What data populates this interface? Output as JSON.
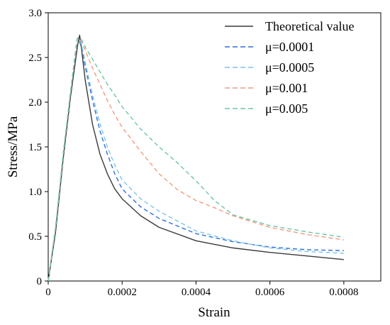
{
  "chart_data": {
    "type": "line",
    "title": "",
    "xlabel": "Strain",
    "ylabel": "Stress/MPa",
    "xlim": [
      0,
      0.0009
    ],
    "ylim": [
      0,
      3.0
    ],
    "x_ticks": [
      0,
      0.0002,
      0.0004,
      0.0006,
      0.0008
    ],
    "x_tick_labels": [
      "0",
      "0.0002",
      "0.0004",
      "0.0006",
      "0.0008"
    ],
    "y_ticks": [
      0,
      0.5,
      1.0,
      1.5,
      2.0,
      2.5,
      3.0
    ],
    "y_tick_labels": [
      "0",
      "0.5",
      "1.0",
      "1.5",
      "2.0",
      "2.5",
      "3.0"
    ],
    "grid": false,
    "legend_position": "top-right",
    "series": [
      {
        "name": "Theoretical value",
        "color": "#3a3a3a",
        "dash": "solid",
        "points": [
          [
            0,
            0
          ],
          [
            2e-05,
            0.55
          ],
          [
            4e-05,
            1.35
          ],
          [
            6e-05,
            2.05
          ],
          [
            8e-05,
            2.65
          ],
          [
            8.5e-05,
            2.75
          ],
          [
            9e-05,
            2.6
          ],
          [
            0.0001,
            2.25
          ],
          [
            0.00012,
            1.75
          ],
          [
            0.00014,
            1.42
          ],
          [
            0.00016,
            1.2
          ],
          [
            0.00018,
            1.03
          ],
          [
            0.0002,
            0.92
          ],
          [
            0.00025,
            0.73
          ],
          [
            0.0003,
            0.6
          ],
          [
            0.0004,
            0.45
          ],
          [
            0.0005,
            0.37
          ],
          [
            0.0006,
            0.32
          ],
          [
            0.0007,
            0.28
          ],
          [
            0.0008,
            0.24
          ]
        ]
      },
      {
        "name": "μ=0.0001",
        "color": "#2e6fd6",
        "dash": "dashed",
        "points": [
          [
            0,
            0
          ],
          [
            2e-05,
            0.6
          ],
          [
            4e-05,
            1.4
          ],
          [
            6e-05,
            2.1
          ],
          [
            7.8e-05,
            2.7
          ],
          [
            8e-05,
            2.72
          ],
          [
            9e-05,
            2.62
          ],
          [
            0.0001,
            2.4
          ],
          [
            0.00012,
            2.02
          ],
          [
            0.00014,
            1.68
          ],
          [
            0.00016,
            1.42
          ],
          [
            0.00018,
            1.2
          ],
          [
            0.0002,
            1.03
          ],
          [
            0.00025,
            0.83
          ],
          [
            0.0003,
            0.7
          ],
          [
            0.0004,
            0.53
          ],
          [
            0.0005,
            0.44
          ],
          [
            0.0006,
            0.38
          ],
          [
            0.0007,
            0.35
          ],
          [
            0.0008,
            0.34
          ]
        ]
      },
      {
        "name": "μ=0.0005",
        "color": "#7cc6e8",
        "dash": "dashed",
        "points": [
          [
            0,
            0
          ],
          [
            2e-05,
            0.6
          ],
          [
            4e-05,
            1.4
          ],
          [
            6e-05,
            2.1
          ],
          [
            7.8e-05,
            2.7
          ],
          [
            8e-05,
            2.72
          ],
          [
            9e-05,
            2.65
          ],
          [
            0.0001,
            2.45
          ],
          [
            0.00012,
            2.08
          ],
          [
            0.00014,
            1.76
          ],
          [
            0.00016,
            1.5
          ],
          [
            0.00018,
            1.3
          ],
          [
            0.0002,
            1.13
          ],
          [
            0.00025,
            0.92
          ],
          [
            0.0003,
            0.78
          ],
          [
            0.0004,
            0.56
          ],
          [
            0.0005,
            0.45
          ],
          [
            0.0006,
            0.37
          ],
          [
            0.0007,
            0.33
          ],
          [
            0.0008,
            0.31
          ]
        ]
      },
      {
        "name": "μ=0.001",
        "color": "#f29a80",
        "dash": "dashed",
        "points": [
          [
            0,
            0
          ],
          [
            2e-05,
            0.6
          ],
          [
            4e-05,
            1.4
          ],
          [
            6e-05,
            2.1
          ],
          [
            7.8e-05,
            2.7
          ],
          [
            8e-05,
            2.72
          ],
          [
            9e-05,
            2.68
          ],
          [
            0.0001,
            2.58
          ],
          [
            0.00012,
            2.38
          ],
          [
            0.00014,
            2.2
          ],
          [
            0.00016,
            2.02
          ],
          [
            0.00018,
            1.86
          ],
          [
            0.0002,
            1.72
          ],
          [
            0.00025,
            1.45
          ],
          [
            0.0003,
            1.2
          ],
          [
            0.00035,
            1.02
          ],
          [
            0.0004,
            0.9
          ],
          [
            0.00045,
            0.82
          ],
          [
            0.0005,
            0.73
          ],
          [
            0.0006,
            0.6
          ],
          [
            0.0007,
            0.52
          ],
          [
            0.0008,
            0.46
          ]
        ]
      },
      {
        "name": "μ=0.005",
        "color": "#6cc6a8",
        "dash": "dashed",
        "points": [
          [
            0,
            0
          ],
          [
            2e-05,
            0.6
          ],
          [
            4e-05,
            1.4
          ],
          [
            6e-05,
            2.1
          ],
          [
            7.8e-05,
            2.7
          ],
          [
            8e-05,
            2.72
          ],
          [
            9e-05,
            2.7
          ],
          [
            0.0001,
            2.62
          ],
          [
            0.00012,
            2.48
          ],
          [
            0.00014,
            2.34
          ],
          [
            0.00016,
            2.2
          ],
          [
            0.00018,
            2.08
          ],
          [
            0.0002,
            1.95
          ],
          [
            0.00025,
            1.7
          ],
          [
            0.0003,
            1.5
          ],
          [
            0.00035,
            1.32
          ],
          [
            0.0004,
            1.12
          ],
          [
            0.00045,
            0.9
          ],
          [
            0.0005,
            0.74
          ],
          [
            0.0006,
            0.62
          ],
          [
            0.0007,
            0.55
          ],
          [
            0.0008,
            0.49
          ]
        ]
      }
    ]
  }
}
